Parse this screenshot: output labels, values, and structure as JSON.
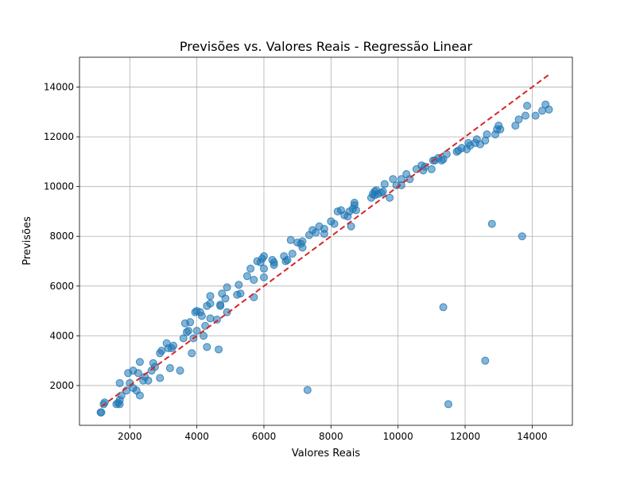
{
  "chart_data": {
    "type": "scatter",
    "title": "Previsões vs. Valores Reais - Regressão Linear",
    "xlabel": "Valores Reais",
    "ylabel": "Previsões",
    "xlim": [
      500,
      15200
    ],
    "ylim": [
      400,
      15200
    ],
    "xticks": [
      2000,
      4000,
      6000,
      8000,
      10000,
      12000,
      14000
    ],
    "yticks": [
      2000,
      4000,
      6000,
      8000,
      10000,
      12000,
      14000
    ],
    "grid": true,
    "point_color": "#1f77b4",
    "reference_line": {
      "style": "dashed",
      "color": "#d62728",
      "from": [
        1150,
        1150
      ],
      "to": [
        14500,
        14500
      ]
    },
    "series": [
      {
        "points": [
          [
            1130,
            920
          ],
          [
            1150,
            920
          ],
          [
            1220,
            1250
          ],
          [
            1250,
            1320
          ],
          [
            1600,
            1250
          ],
          [
            1650,
            1300
          ],
          [
            1700,
            1420
          ],
          [
            1700,
            1250
          ],
          [
            1750,
            1600
          ],
          [
            1700,
            2100
          ],
          [
            1900,
            1800
          ],
          [
            1950,
            2500
          ],
          [
            2000,
            2100
          ],
          [
            2100,
            1900
          ],
          [
            2100,
            2600
          ],
          [
            2200,
            1800
          ],
          [
            2250,
            2500
          ],
          [
            2300,
            1600
          ],
          [
            2300,
            2950
          ],
          [
            2400,
            2200
          ],
          [
            2450,
            2350
          ],
          [
            2550,
            2200
          ],
          [
            2650,
            2600
          ],
          [
            2700,
            2900
          ],
          [
            2750,
            2750
          ],
          [
            2900,
            2300
          ],
          [
            2900,
            3300
          ],
          [
            2950,
            3400
          ],
          [
            3100,
            3700
          ],
          [
            3150,
            3500
          ],
          [
            3200,
            2700
          ],
          [
            3250,
            3500
          ],
          [
            3300,
            3600
          ],
          [
            3500,
            2600
          ],
          [
            3600,
            3900
          ],
          [
            3650,
            4500
          ],
          [
            3700,
            4150
          ],
          [
            3750,
            4200
          ],
          [
            3800,
            4550
          ],
          [
            3850,
            3300
          ],
          [
            3900,
            3900
          ],
          [
            3950,
            4950
          ],
          [
            4000,
            5000
          ],
          [
            4000,
            4200
          ],
          [
            4100,
            4950
          ],
          [
            4150,
            4800
          ],
          [
            4200,
            4000
          ],
          [
            4250,
            4400
          ],
          [
            4300,
            3550
          ],
          [
            4300,
            5200
          ],
          [
            4400,
            5300
          ],
          [
            4400,
            5600
          ],
          [
            4400,
            4700
          ],
          [
            4600,
            4650
          ],
          [
            4650,
            3450
          ],
          [
            4700,
            5200
          ],
          [
            4700,
            5250
          ],
          [
            4750,
            5700
          ],
          [
            4850,
            5500
          ],
          [
            4900,
            5950
          ],
          [
            4900,
            4950
          ],
          [
            5200,
            5650
          ],
          [
            5250,
            6050
          ],
          [
            5300,
            5700
          ],
          [
            5500,
            6400
          ],
          [
            5600,
            6700
          ],
          [
            5700,
            5550
          ],
          [
            5700,
            6250
          ],
          [
            5800,
            7000
          ],
          [
            5900,
            6950
          ],
          [
            5950,
            7100
          ],
          [
            6000,
            7200
          ],
          [
            6000,
            6350
          ],
          [
            6000,
            6700
          ],
          [
            6250,
            7050
          ],
          [
            6300,
            6850
          ],
          [
            6300,
            6950
          ],
          [
            6600,
            7200
          ],
          [
            6650,
            7000
          ],
          [
            6700,
            7050
          ],
          [
            6800,
            7850
          ],
          [
            6850,
            7300
          ],
          [
            7000,
            7750
          ],
          [
            7100,
            7700
          ],
          [
            7150,
            7800
          ],
          [
            7150,
            7550
          ],
          [
            7300,
            1820
          ],
          [
            7350,
            8050
          ],
          [
            7450,
            8250
          ],
          [
            7550,
            8150
          ],
          [
            7650,
            8400
          ],
          [
            7800,
            8300
          ],
          [
            7800,
            8100
          ],
          [
            8000,
            8600
          ],
          [
            8100,
            8500
          ],
          [
            8200,
            9000
          ],
          [
            8300,
            9050
          ],
          [
            8400,
            8850
          ],
          [
            8500,
            8800
          ],
          [
            8550,
            9000
          ],
          [
            8600,
            8400
          ],
          [
            8650,
            9100
          ],
          [
            8700,
            9250
          ],
          [
            8700,
            9350
          ],
          [
            8750,
            9050
          ],
          [
            9200,
            9550
          ],
          [
            9250,
            9700
          ],
          [
            9300,
            9650
          ],
          [
            9300,
            9800
          ],
          [
            9350,
            9850
          ],
          [
            9400,
            9700
          ],
          [
            9500,
            9750
          ],
          [
            9550,
            9800
          ],
          [
            9600,
            10100
          ],
          [
            9750,
            9550
          ],
          [
            9850,
            10300
          ],
          [
            9950,
            10050
          ],
          [
            10100,
            10300
          ],
          [
            10100,
            10050
          ],
          [
            10250,
            10500
          ],
          [
            10350,
            10300
          ],
          [
            10550,
            10700
          ],
          [
            10700,
            10850
          ],
          [
            10750,
            10650
          ],
          [
            10800,
            10800
          ],
          [
            11000,
            10700
          ],
          [
            11050,
            11050
          ],
          [
            11100,
            11050
          ],
          [
            11200,
            11150
          ],
          [
            11300,
            11050
          ],
          [
            11350,
            11100
          ],
          [
            11350,
            5150
          ],
          [
            11450,
            11300
          ],
          [
            11500,
            1250
          ],
          [
            11750,
            11400
          ],
          [
            11800,
            11450
          ],
          [
            11900,
            11550
          ],
          [
            12050,
            11500
          ],
          [
            12100,
            11750
          ],
          [
            12150,
            11650
          ],
          [
            12300,
            11750
          ],
          [
            12350,
            11900
          ],
          [
            12450,
            11700
          ],
          [
            12600,
            11850
          ],
          [
            12600,
            3000
          ],
          [
            12650,
            12100
          ],
          [
            12800,
            8500
          ],
          [
            12900,
            12100
          ],
          [
            12950,
            12300
          ],
          [
            13000,
            12450
          ],
          [
            13050,
            12300
          ],
          [
            13500,
            12450
          ],
          [
            13600,
            12700
          ],
          [
            13700,
            8000
          ],
          [
            13800,
            12850
          ],
          [
            13850,
            13250
          ],
          [
            14100,
            12850
          ],
          [
            14300,
            13050
          ],
          [
            14400,
            13300
          ],
          [
            14500,
            13100
          ]
        ]
      }
    ]
  }
}
